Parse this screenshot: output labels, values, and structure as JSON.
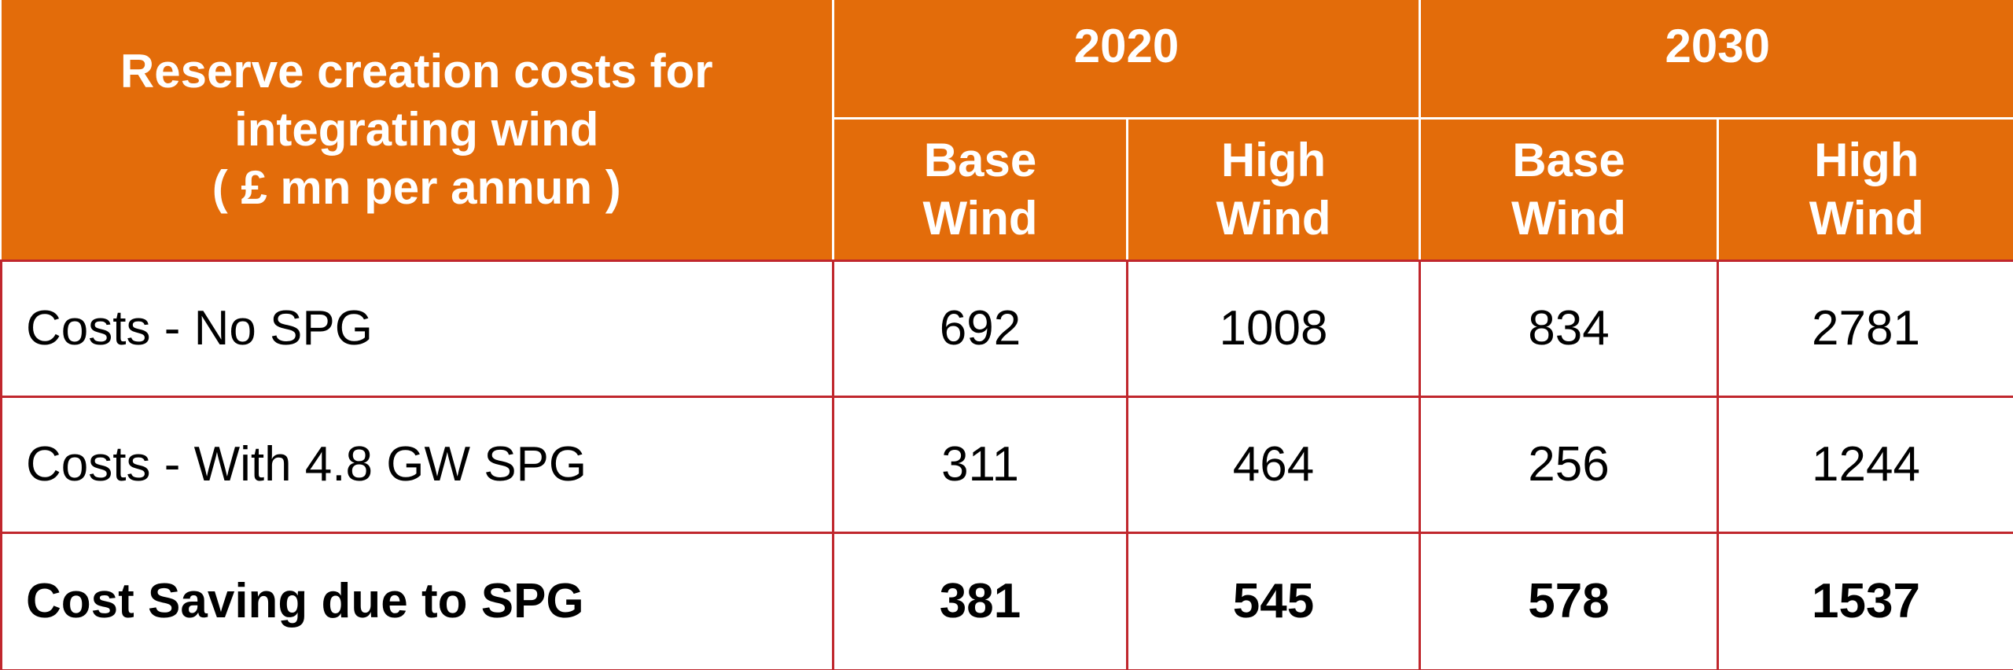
{
  "header": {
    "title": [
      "Reserve creation costs for",
      "integrating wind",
      "( £ mn per annun )"
    ],
    "years": [
      "2020",
      "2030"
    ],
    "scenarios": [
      [
        "Base",
        "Wind"
      ],
      [
        "High",
        "Wind"
      ],
      [
        "Base",
        "Wind"
      ],
      [
        "High",
        "Wind"
      ]
    ]
  },
  "table": {
    "rows": [
      [
        "Costs - No SPG",
        692,
        1008,
        834,
        2781
      ],
      [
        "Costs - With 4.8 GW SPG",
        311,
        464,
        256,
        1244
      ],
      [
        "Cost Saving due to SPG",
        381,
        545,
        578,
        1537
      ]
    ]
  }
}
